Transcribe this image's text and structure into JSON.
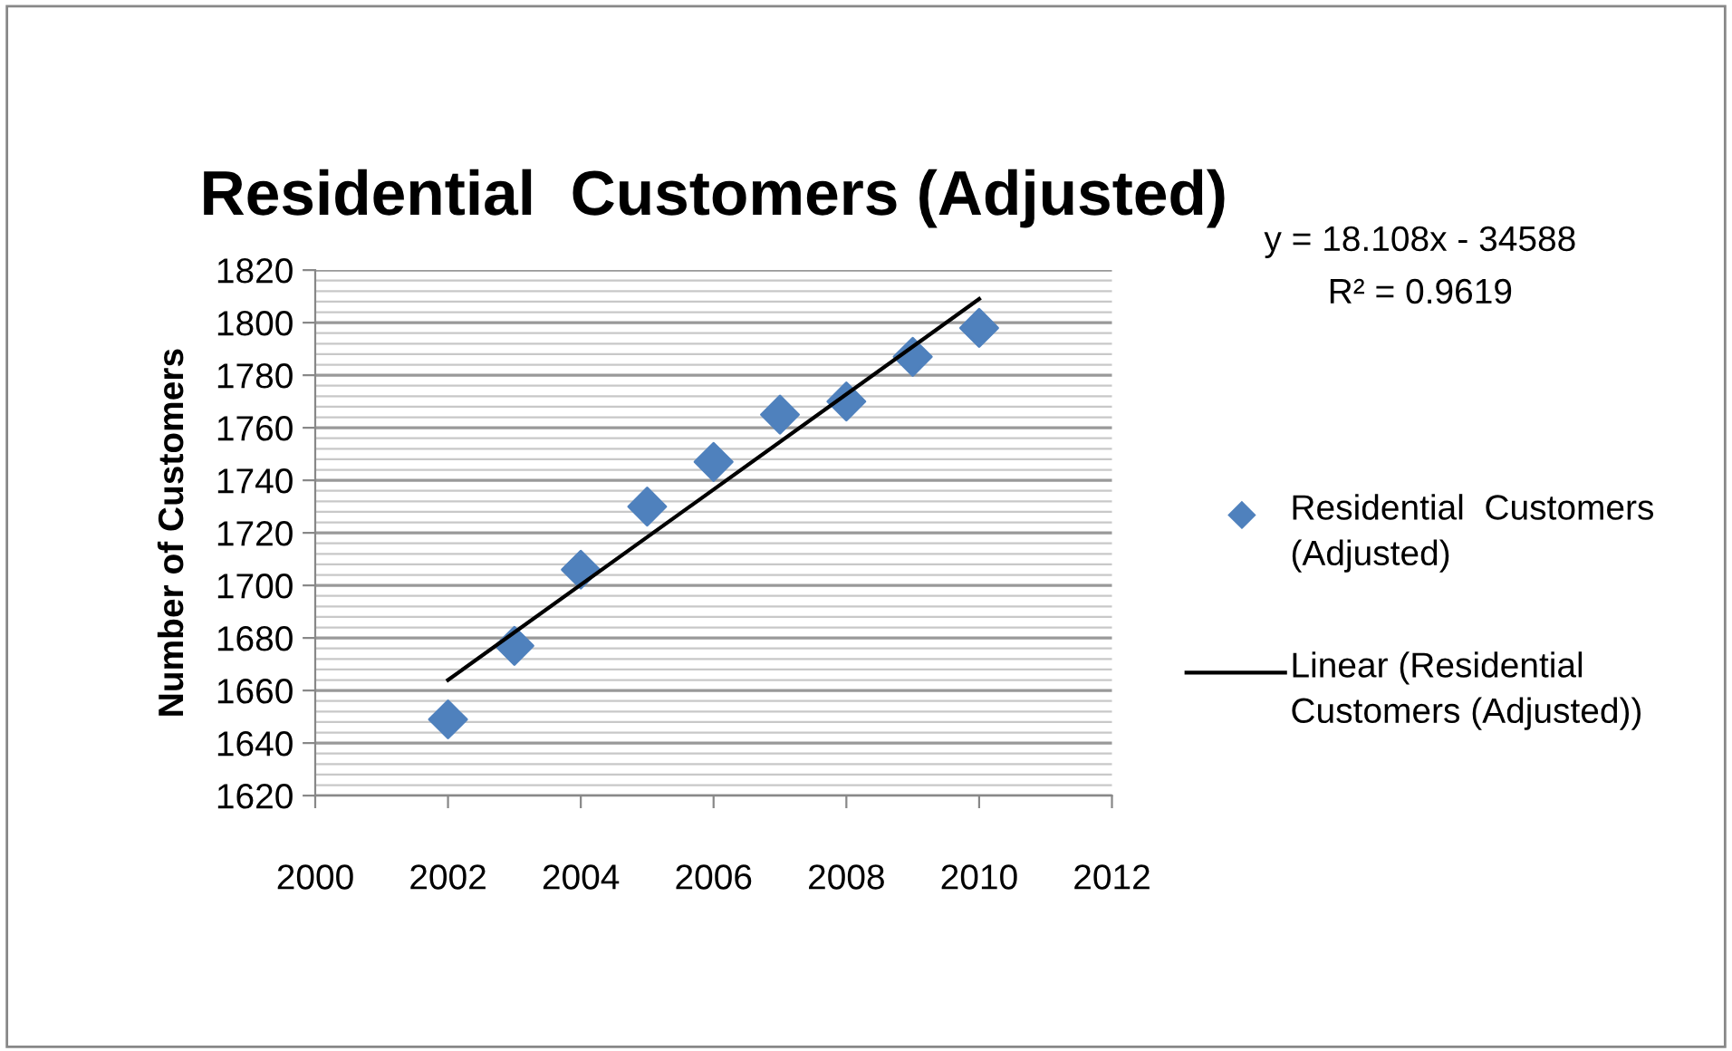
{
  "chart_data": {
    "type": "scatter",
    "title": "Residential  Customers (Adjusted)",
    "ylabel": "Number of Customers",
    "x": [
      2002,
      2003,
      2004,
      2005,
      2006,
      2007,
      2008,
      2009,
      2010
    ],
    "series": [
      {
        "name": "Residential  Customers (Adjusted)",
        "color": "#4f81bd",
        "marker": "diamond",
        "values": [
          1649,
          1677,
          1706,
          1730,
          1747,
          1765,
          1770,
          1787,
          1798
        ]
      },
      {
        "name": "Linear (Residential Customers (Adjusted))",
        "type": "line",
        "color": "#000000",
        "marker": "none",
        "line_style": "solid",
        "x": [
          2002,
          2010
        ],
        "values": [
          1664,
          1809
        ]
      }
    ],
    "annotations": [
      "y = 18.108x - 34588",
      "R² = 0.9619"
    ],
    "xlim": [
      2000,
      2012
    ],
    "xticks": [
      2000,
      2002,
      2004,
      2006,
      2008,
      2010,
      2012
    ],
    "ylim": [
      1620,
      1820
    ],
    "yticks": [
      1620,
      1640,
      1660,
      1680,
      1700,
      1720,
      1740,
      1760,
      1780,
      1800,
      1820
    ],
    "grid": "y",
    "legend": "right"
  }
}
